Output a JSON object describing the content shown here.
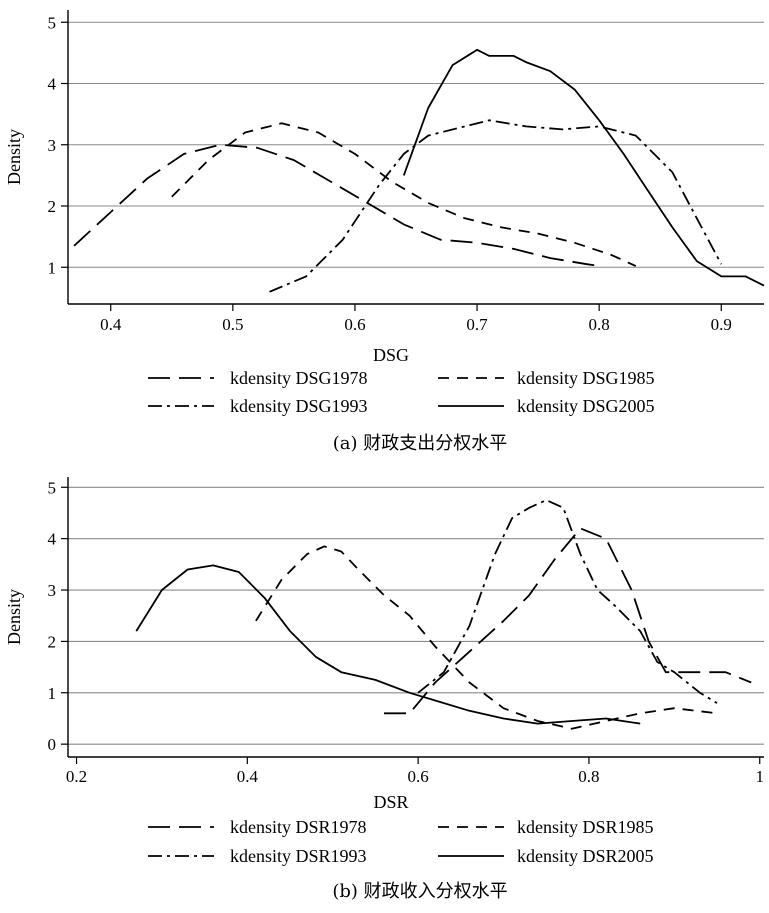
{
  "chart_data": [
    {
      "type": "line",
      "caption": "(a) 财政支出分权水平",
      "xlabel": "DSG",
      "ylabel": "Density",
      "xlim": [
        0.365,
        0.935
      ],
      "ylim": [
        0.4,
        5.2
      ],
      "xticks": [
        0.4,
        0.5,
        0.6,
        0.7,
        0.8,
        0.9
      ],
      "xtick_labels": [
        "0.4",
        "0.5",
        "0.6",
        "0.7",
        "0.8",
        "0.9"
      ],
      "yticks": [
        1,
        2,
        3,
        4,
        5
      ],
      "ytick_labels": [
        "1",
        "2",
        "3",
        "4",
        "5"
      ],
      "grid": true,
      "legend_position": "bottom",
      "series": [
        {
          "name": "kdensity DSG1978",
          "dash": "long",
          "x": [
            0.37,
            0.4,
            0.43,
            0.46,
            0.49,
            0.52,
            0.55,
            0.58,
            0.61,
            0.64,
            0.67,
            0.7,
            0.73,
            0.76,
            0.79,
            0.8
          ],
          "y": [
            1.35,
            1.9,
            2.45,
            2.85,
            3.0,
            2.95,
            2.75,
            2.4,
            2.05,
            1.7,
            1.45,
            1.4,
            1.3,
            1.15,
            1.05,
            1.02
          ]
        },
        {
          "name": "kdensity DSG1985",
          "dash": "short",
          "x": [
            0.45,
            0.48,
            0.51,
            0.54,
            0.57,
            0.6,
            0.63,
            0.66,
            0.69,
            0.72,
            0.75,
            0.78,
            0.81,
            0.83
          ],
          "y": [
            2.15,
            2.75,
            3.2,
            3.35,
            3.2,
            2.85,
            2.4,
            2.05,
            1.8,
            1.65,
            1.55,
            1.4,
            1.2,
            1.02
          ]
        },
        {
          "name": "kdensity DSG1993",
          "dash": "dashdot",
          "x": [
            0.53,
            0.56,
            0.59,
            0.62,
            0.64,
            0.66,
            0.69,
            0.71,
            0.74,
            0.77,
            0.8,
            0.83,
            0.86,
            0.88,
            0.9
          ],
          "y": [
            0.6,
            0.85,
            1.45,
            2.35,
            2.85,
            3.15,
            3.3,
            3.4,
            3.3,
            3.25,
            3.3,
            3.15,
            2.55,
            1.8,
            1.05
          ]
        },
        {
          "name": "kdensity DSG2005",
          "dash": "solid",
          "x": [
            0.64,
            0.66,
            0.68,
            0.7,
            0.71,
            0.73,
            0.74,
            0.76,
            0.78,
            0.8,
            0.82,
            0.84,
            0.86,
            0.88,
            0.9,
            0.92,
            0.935
          ],
          "y": [
            2.5,
            3.6,
            4.3,
            4.55,
            4.45,
            4.45,
            4.35,
            4.2,
            3.9,
            3.4,
            2.85,
            2.25,
            1.65,
            1.1,
            0.85,
            0.85,
            0.7
          ]
        }
      ]
    },
    {
      "type": "line",
      "caption": "(b) 财政收入分权水平",
      "xlabel": "DSR",
      "ylabel": "Density",
      "xlim": [
        0.19,
        1.005
      ],
      "ylim": [
        -0.25,
        5.2
      ],
      "xticks": [
        0.2,
        0.4,
        0.6,
        0.8,
        1.0
      ],
      "xtick_labels": [
        "0.2",
        "0.4",
        "0.6",
        "0.8",
        "1"
      ],
      "yticks": [
        0,
        1,
        2,
        3,
        4,
        5
      ],
      "ytick_labels": [
        "0",
        "1",
        "2",
        "3",
        "4",
        "5"
      ],
      "grid": true,
      "legend_position": "bottom",
      "series": [
        {
          "name": "kdensity DSR1978",
          "dash": "long",
          "x": [
            0.56,
            0.59,
            0.62,
            0.66,
            0.7,
            0.73,
            0.76,
            0.79,
            0.82,
            0.85,
            0.87,
            0.89,
            0.92,
            0.96,
            0.99
          ],
          "y": [
            0.6,
            0.6,
            1.2,
            1.8,
            2.4,
            2.9,
            3.6,
            4.2,
            4.0,
            3.0,
            2.0,
            1.4,
            1.4,
            1.4,
            1.2
          ]
        },
        {
          "name": "kdensity DSR1985",
          "dash": "short",
          "x": [
            0.41,
            0.44,
            0.47,
            0.49,
            0.51,
            0.53,
            0.56,
            0.59,
            0.62,
            0.66,
            0.7,
            0.74,
            0.78,
            0.82,
            0.86,
            0.9,
            0.95
          ],
          "y": [
            2.4,
            3.2,
            3.7,
            3.85,
            3.75,
            3.4,
            2.9,
            2.5,
            1.9,
            1.2,
            0.7,
            0.45,
            0.3,
            0.45,
            0.6,
            0.7,
            0.6
          ]
        },
        {
          "name": "kdensity DSR1993",
          "dash": "dashdot",
          "x": [
            0.6,
            0.63,
            0.66,
            0.69,
            0.71,
            0.73,
            0.75,
            0.77,
            0.79,
            0.81,
            0.83,
            0.86,
            0.88,
            0.9,
            0.93,
            0.95
          ],
          "y": [
            1.0,
            1.4,
            2.3,
            3.7,
            4.4,
            4.6,
            4.75,
            4.6,
            3.7,
            3.0,
            2.7,
            2.2,
            1.6,
            1.4,
            1.0,
            0.8
          ]
        },
        {
          "name": "kdensity DSR2005",
          "dash": "solid",
          "x": [
            0.27,
            0.3,
            0.33,
            0.36,
            0.39,
            0.42,
            0.45,
            0.48,
            0.51,
            0.55,
            0.59,
            0.62,
            0.66,
            0.7,
            0.74,
            0.78,
            0.82,
            0.86
          ],
          "y": [
            2.2,
            3.0,
            3.4,
            3.48,
            3.35,
            2.85,
            2.2,
            1.7,
            1.4,
            1.25,
            1.0,
            0.85,
            0.65,
            0.5,
            0.4,
            0.45,
            0.5,
            0.4
          ]
        }
      ]
    }
  ]
}
